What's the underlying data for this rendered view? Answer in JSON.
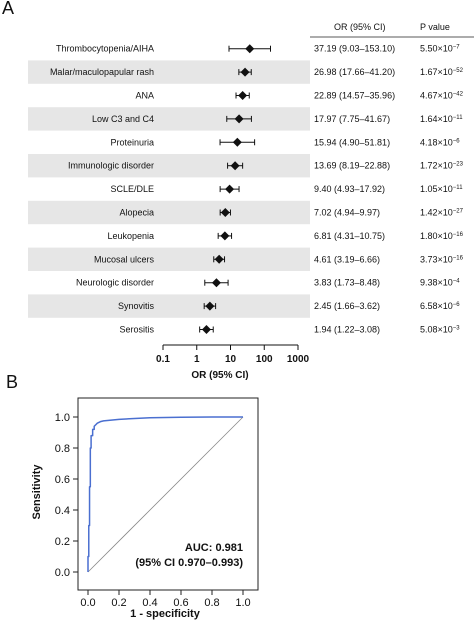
{
  "panel_a_label": "A",
  "panel_b_label": "B",
  "table_header": {
    "or": "OR (95% CI)",
    "p": "P value"
  },
  "chart_data": [
    {
      "type": "forest",
      "xlabel": "OR (95% CI)",
      "xscale": "log",
      "xlim": [
        0.1,
        1000
      ],
      "xticks": [
        "0.1",
        "1",
        "10",
        "100",
        "1000"
      ],
      "rows": [
        {
          "label": "Thrombocytopenia/AIHA",
          "or": 37.19,
          "lo": 9.03,
          "hi": 153.1,
          "or_text": "37.19 (9.03–153.10)",
          "p_mant": "5.50",
          "p_exp": "−7"
        },
        {
          "label": "Malar/maculopapular rash",
          "or": 26.98,
          "lo": 17.66,
          "hi": 41.2,
          "or_text": "26.98 (17.66–41.20)",
          "p_mant": "1.67",
          "p_exp": "−52"
        },
        {
          "label": "ANA",
          "or": 22.89,
          "lo": 14.57,
          "hi": 35.96,
          "or_text": "22.89 (14.57–35.96)",
          "p_mant": "4.67",
          "p_exp": "−42"
        },
        {
          "label": "Low C3 and C4",
          "or": 17.97,
          "lo": 7.75,
          "hi": 41.67,
          "or_text": "17.97 (7.75–41.67)",
          "p_mant": "1.64",
          "p_exp": "−11"
        },
        {
          "label": "Proteinuria",
          "or": 15.94,
          "lo": 4.9,
          "hi": 51.81,
          "or_text": "15.94 (4.90–51.81)",
          "p_mant": "4.18",
          "p_exp": "−6"
        },
        {
          "label": "Immunologic disorder",
          "or": 13.69,
          "lo": 8.19,
          "hi": 22.88,
          "or_text": "13.69 (8.19–22.88)",
          "p_mant": "1.72",
          "p_exp": "−23"
        },
        {
          "label": "SCLE/DLE",
          "or": 9.4,
          "lo": 4.93,
          "hi": 17.92,
          "or_text": "9.40 (4.93–17.92)",
          "p_mant": "1.05",
          "p_exp": "−11"
        },
        {
          "label": "Alopecia",
          "or": 7.02,
          "lo": 4.94,
          "hi": 9.97,
          "or_text": "7.02 (4.94–9.97)",
          "p_mant": "1.42",
          "p_exp": "−27"
        },
        {
          "label": "Leukopenia",
          "or": 6.81,
          "lo": 4.31,
          "hi": 10.75,
          "or_text": "6.81 (4.31–10.75)",
          "p_mant": "1.80",
          "p_exp": "−16"
        },
        {
          "label": "Mucosal ulcers",
          "or": 4.61,
          "lo": 3.19,
          "hi": 6.66,
          "or_text": "4.61 (3.19–6.66)",
          "p_mant": "3.73",
          "p_exp": "−16"
        },
        {
          "label": "Neurologic disorder",
          "or": 3.83,
          "lo": 1.73,
          "hi": 8.48,
          "or_text": "3.83 (1.73–8.48)",
          "p_mant": "9.38",
          "p_exp": "−4"
        },
        {
          "label": "Synovitis",
          "or": 2.45,
          "lo": 1.66,
          "hi": 3.62,
          "or_text": "2.45 (1.66–3.62)",
          "p_mant": "6.58",
          "p_exp": "−6"
        },
        {
          "label": "Serositis",
          "or": 1.94,
          "lo": 1.22,
          "hi": 3.08,
          "or_text": "1.94 (1.22–3.08)",
          "p_mant": "5.08",
          "p_exp": "−3"
        }
      ]
    },
    {
      "type": "line",
      "xlabel": "1 - specificity",
      "ylabel": "Sensitivity",
      "xlim": [
        0,
        1.0
      ],
      "ylim": [
        0,
        1.0
      ],
      "xticks": [
        "0.0",
        "0.2",
        "0.4",
        "0.6",
        "0.8",
        "1.0"
      ],
      "yticks": [
        "0.0",
        "0.2",
        "0.4",
        "0.6",
        "0.8",
        "1.0"
      ],
      "annotation_line1": "AUC: 0.981",
      "annotation_line2": "(95% CI 0.970–0.993)",
      "roc_color": "#4a6fd0",
      "series": [
        {
          "x": [
            0,
            0,
            0.005,
            0.005,
            0.01,
            0.01,
            0.015,
            0.015,
            0.02,
            0.02,
            0.03,
            0.03,
            0.04,
            0.04,
            0.05,
            0.06,
            0.08,
            0.1,
            0.15,
            0.2,
            0.3,
            0.4,
            0.5,
            0.6,
            0.7,
            0.8,
            0.9,
            1.0
          ],
          "y": [
            0,
            0.1,
            0.1,
            0.3,
            0.3,
            0.55,
            0.55,
            0.8,
            0.8,
            0.88,
            0.88,
            0.92,
            0.92,
            0.94,
            0.95,
            0.96,
            0.97,
            0.975,
            0.98,
            0.985,
            0.99,
            0.995,
            0.997,
            0.998,
            0.999,
            1.0,
            1.0,
            1.0
          ]
        },
        {
          "x": [
            0,
            1.0
          ],
          "y": [
            0,
            1.0
          ]
        }
      ]
    }
  ]
}
